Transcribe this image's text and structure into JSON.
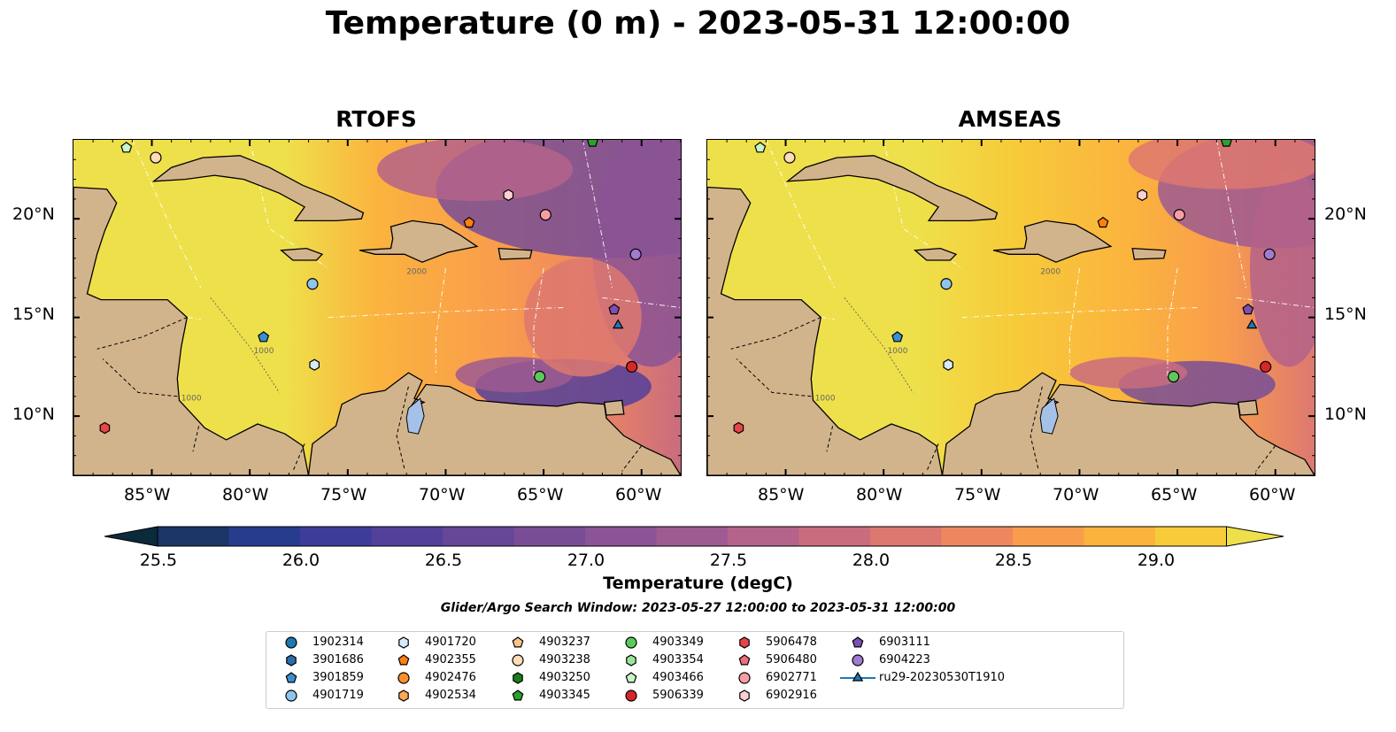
{
  "title": "Temperature (0 m) - 2023-05-31 12:00:00",
  "panels": [
    {
      "title": "RTOFS",
      "model": "rtofs"
    },
    {
      "title": "AMSEAS",
      "model": "amseas"
    }
  ],
  "lon_ticks": [
    "85°W",
    "80°W",
    "75°W",
    "70°W",
    "65°W",
    "60°W"
  ],
  "lat_ticks": [
    "20°N",
    "15°N",
    "10°N"
  ],
  "colorbar": {
    "label": "Temperature (degC)",
    "ticks": [
      "25.5",
      "26.0",
      "26.5",
      "27.0",
      "27.5",
      "28.0",
      "28.5",
      "29.0"
    ],
    "min": 25.5,
    "max": 29.25,
    "step": 0.25,
    "colors": [
      "#0b2a3c",
      "#1a3566",
      "#283c8e",
      "#3e3c99",
      "#53409a",
      "#664697",
      "#784d96",
      "#8b5494",
      "#9e5b91",
      "#b4638a",
      "#c96c7e",
      "#dd7870",
      "#ee8760",
      "#f99d4c",
      "#fbb33e",
      "#f7cb3a",
      "#eee04a"
    ]
  },
  "contour_labels": [
    "1000",
    "2000"
  ],
  "search_window": "Glider/Argo Search Window: 2023-05-27 12:00:00 to 2023-05-31 12:00:00",
  "chart_data": {
    "type": "heatmap",
    "variable": "Temperature (degC)",
    "depth": "0 m",
    "time": "2023-05-31 12:00:00",
    "xlim": [
      -89,
      -58
    ],
    "ylim": [
      7,
      24
    ],
    "colorbar_range": [
      25.5,
      29.25
    ],
    "platforms": [
      {
        "id": "1902314",
        "marker": "circle",
        "color": "#1f77b4",
        "lon": null,
        "lat": null
      },
      {
        "id": "3901686",
        "marker": "hexagon",
        "color": "#2a6ea8",
        "lon": null,
        "lat": null
      },
      {
        "id": "3901859",
        "marker": "pentagon",
        "color": "#3a8fd0",
        "lon": -79.3,
        "lat": 14.0
      },
      {
        "id": "4901719",
        "marker": "circle",
        "color": "#8ec5ec",
        "lon": -76.8,
        "lat": 16.7
      },
      {
        "id": "4901720",
        "marker": "hexagon",
        "color": "#d6eafa",
        "lon": -76.7,
        "lat": 12.6
      },
      {
        "id": "4902355",
        "marker": "pentagon",
        "color": "#ff7f0e",
        "lon": -68.8,
        "lat": 19.8
      },
      {
        "id": "4902476",
        "marker": "circle",
        "color": "#ff8f2a",
        "lon": null,
        "lat": null
      },
      {
        "id": "4902534",
        "marker": "hexagon",
        "color": "#ffa756",
        "lon": null,
        "lat": null
      },
      {
        "id": "4903237",
        "marker": "pentagon",
        "color": "#ffc48c",
        "lon": null,
        "lat": null
      },
      {
        "id": "4903238",
        "marker": "circle",
        "color": "#ffdcb8",
        "lon": -84.8,
        "lat": 23.1
      },
      {
        "id": "4903250",
        "marker": "hexagon",
        "color": "#1a7d1a",
        "lon": null,
        "lat": null
      },
      {
        "id": "4903345",
        "marker": "pentagon",
        "color": "#2ca02c",
        "lon": -62.5,
        "lat": 23.9
      },
      {
        "id": "4903349",
        "marker": "circle",
        "color": "#5cc95c",
        "lon": -65.2,
        "lat": 12.0
      },
      {
        "id": "4903354",
        "marker": "hexagon",
        "color": "#9be39b",
        "lon": null,
        "lat": null
      },
      {
        "id": "4903466",
        "marker": "pentagon",
        "color": "#c8f5c8",
        "lon": -86.3,
        "lat": 23.6
      },
      {
        "id": "5906339",
        "marker": "circle",
        "color": "#d62728",
        "lon": -60.5,
        "lat": 12.5
      },
      {
        "id": "5906478",
        "marker": "hexagon",
        "color": "#e8454a",
        "lon": -87.4,
        "lat": 9.4
      },
      {
        "id": "5906480",
        "marker": "pentagon",
        "color": "#ee6f7c",
        "lon": null,
        "lat": null
      },
      {
        "id": "6902771",
        "marker": "circle",
        "color": "#f79ea5",
        "lon": -64.9,
        "lat": 20.2
      },
      {
        "id": "6902916",
        "marker": "hexagon",
        "color": "#fbd0d3",
        "lon": -66.8,
        "lat": 21.2
      },
      {
        "id": "6903111",
        "marker": "pentagon",
        "color": "#7d4eb3",
        "lon": -61.4,
        "lat": 15.4
      },
      {
        "id": "6904223",
        "marker": "circle",
        "color": "#a07bd0",
        "lon": -60.3,
        "lat": 18.2
      },
      {
        "id": "ru29-20230530T1910",
        "marker": "triangle",
        "color": "#1f77b4",
        "lon": -61.2,
        "lat": 14.6
      }
    ]
  }
}
